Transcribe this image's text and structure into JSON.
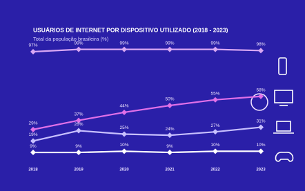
{
  "chart_data": {
    "type": "line",
    "title": "USUÁRIOS DE INTERNET POR DISPOSITIVO UTILIZADO (2018 - 2023)",
    "subtitle": "Total da população brasileira (%)",
    "categories": [
      "2018",
      "2019",
      "2020",
      "2021",
      "2022",
      "2023"
    ],
    "ylim": [
      0,
      100
    ],
    "series": [
      {
        "color": "#d9a8f4",
        "values": [
          97,
          99,
          99,
          99,
          99,
          98
        ],
        "value_labels": [
          "97%",
          "99%",
          "99%",
          "99%",
          "99%",
          "98%"
        ]
      },
      {
        "color": "#e070e8",
        "values": [
          29,
          37,
          44,
          50,
          55,
          58
        ],
        "value_labels": [
          "29%",
          "37%",
          "44%",
          "50%",
          "55%",
          "58%"
        ]
      },
      {
        "color": "#c8c0ff",
        "values": [
          19,
          28,
          25,
          24,
          27,
          31
        ],
        "value_labels": [
          "19%",
          "28%",
          "25%",
          "24%",
          "27%",
          "31%"
        ]
      },
      {
        "color": "#ffffff",
        "values": [
          9,
          9,
          10,
          9,
          10,
          10
        ],
        "value_labels": [
          "9%",
          "9%",
          "10%",
          "9%",
          "10%",
          "10%"
        ]
      }
    ]
  }
}
